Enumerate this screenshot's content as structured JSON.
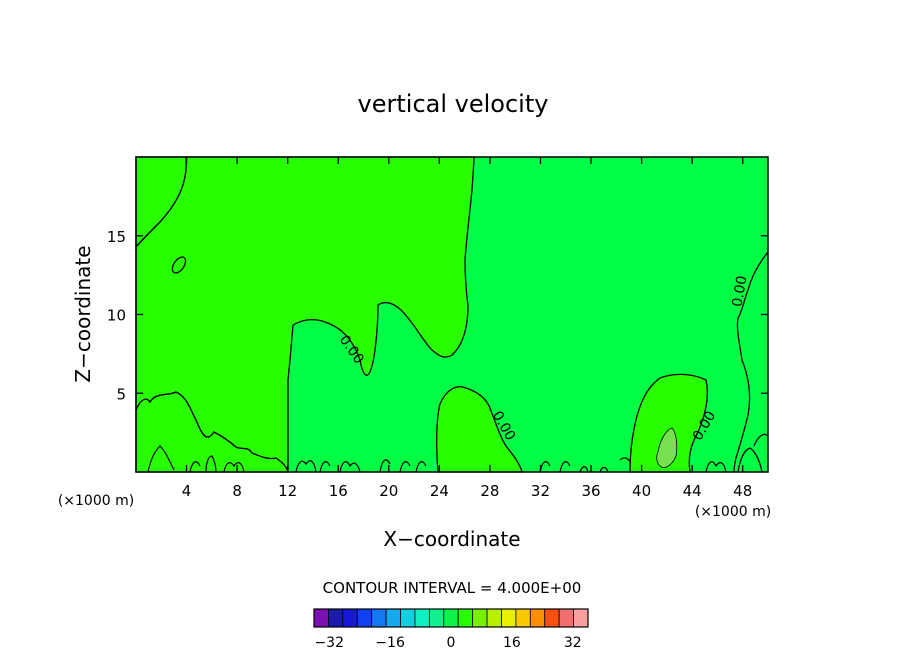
{
  "chart_data": {
    "type": "contour",
    "title": "vertical velocity",
    "xlabel": "X−coordinate",
    "ylabel": "Z−coordinate",
    "x_unit_left": "(×1000 m)",
    "x_unit_right": "(×1000 m)",
    "xlim": [
      0,
      50
    ],
    "ylim": [
      0,
      20
    ],
    "x_ticks": [
      4,
      8,
      12,
      16,
      20,
      24,
      28,
      32,
      36,
      40,
      44,
      48
    ],
    "y_ticks": [
      5,
      10,
      15
    ],
    "contour_label": "0.00",
    "contour_interval_text": "CONTOUR INTERVAL = 4.000E+00",
    "colorbar": {
      "levels": [
        -36,
        -32,
        -28,
        -24,
        -20,
        -16,
        -12,
        -8,
        -4,
        0,
        4,
        8,
        12,
        16,
        20,
        24,
        28,
        32,
        36
      ],
      "tick_labels": [
        "−32",
        "−16",
        "0",
        "16",
        "32"
      ],
      "tick_values": [
        -32,
        -16,
        0,
        16,
        32
      ],
      "colors": [
        "#7a10b0",
        "#1c1ca8",
        "#1818d8",
        "#1040f0",
        "#1478f0",
        "#18a8f0",
        "#10d0e0",
        "#10f0c0",
        "#10f090",
        "#10f048",
        "#28ff00",
        "#78f000",
        "#b8f000",
        "#e8f000",
        "#f8c800",
        "#f89000",
        "#f85010",
        "#f07070",
        "#f8a0a0"
      ]
    },
    "field_colors": {
      "negative_band": "#00ff44",
      "positive_band": "#28ff00",
      "max_cell": "#78e050"
    }
  }
}
